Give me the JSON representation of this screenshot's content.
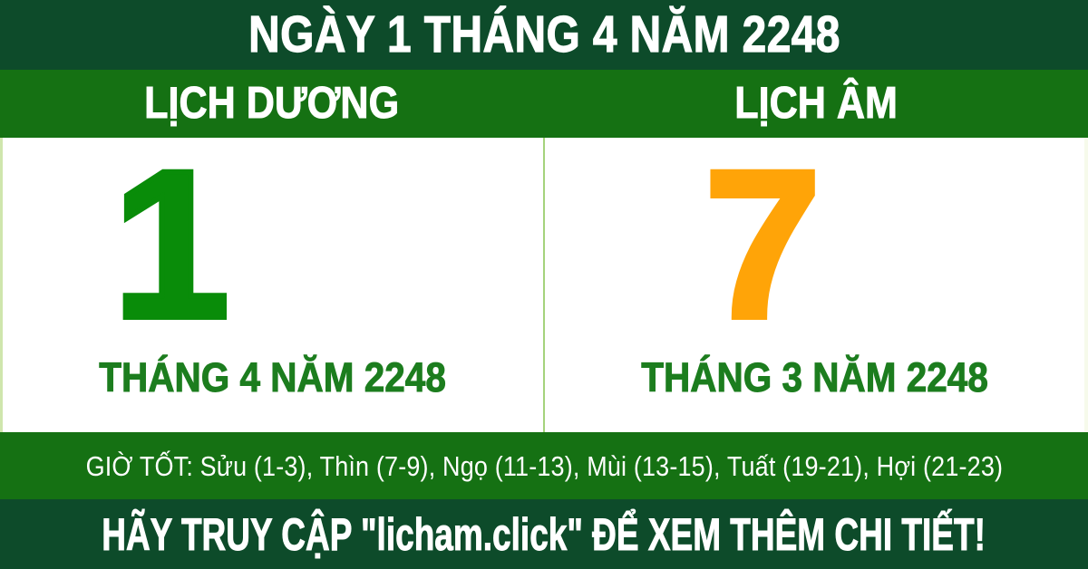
{
  "banner": {
    "title": "NGÀY 1 THÁNG 4 NĂM 2248"
  },
  "columns": [
    {
      "header": "LỊCH DƯƠNG",
      "day": "1",
      "month_label": "THÁNG 4 NĂM 2248"
    },
    {
      "header": "LỊCH ÂM",
      "day": "7",
      "month_label": "THÁNG 3 NĂM 2248"
    }
  ],
  "good_hours": {
    "text": "GIỜ TỐT: Sửu (1-3), Thìn (7-9), Ngọ (11-13), Mùi (13-15), Tuất (19-21), Hợi (21-23)"
  },
  "footer": {
    "text": "HÃY TRUY CẬP \"licham.click\" ĐỂ XEM THÊM CHI TIẾT!"
  },
  "colors": {
    "dark_green": "#0d4b2a",
    "band_green": "#157113",
    "digit_green": "#098c09",
    "month_green": "#1c7d1e",
    "orange": "#ffa408",
    "divider_green": "#a5d37c"
  }
}
